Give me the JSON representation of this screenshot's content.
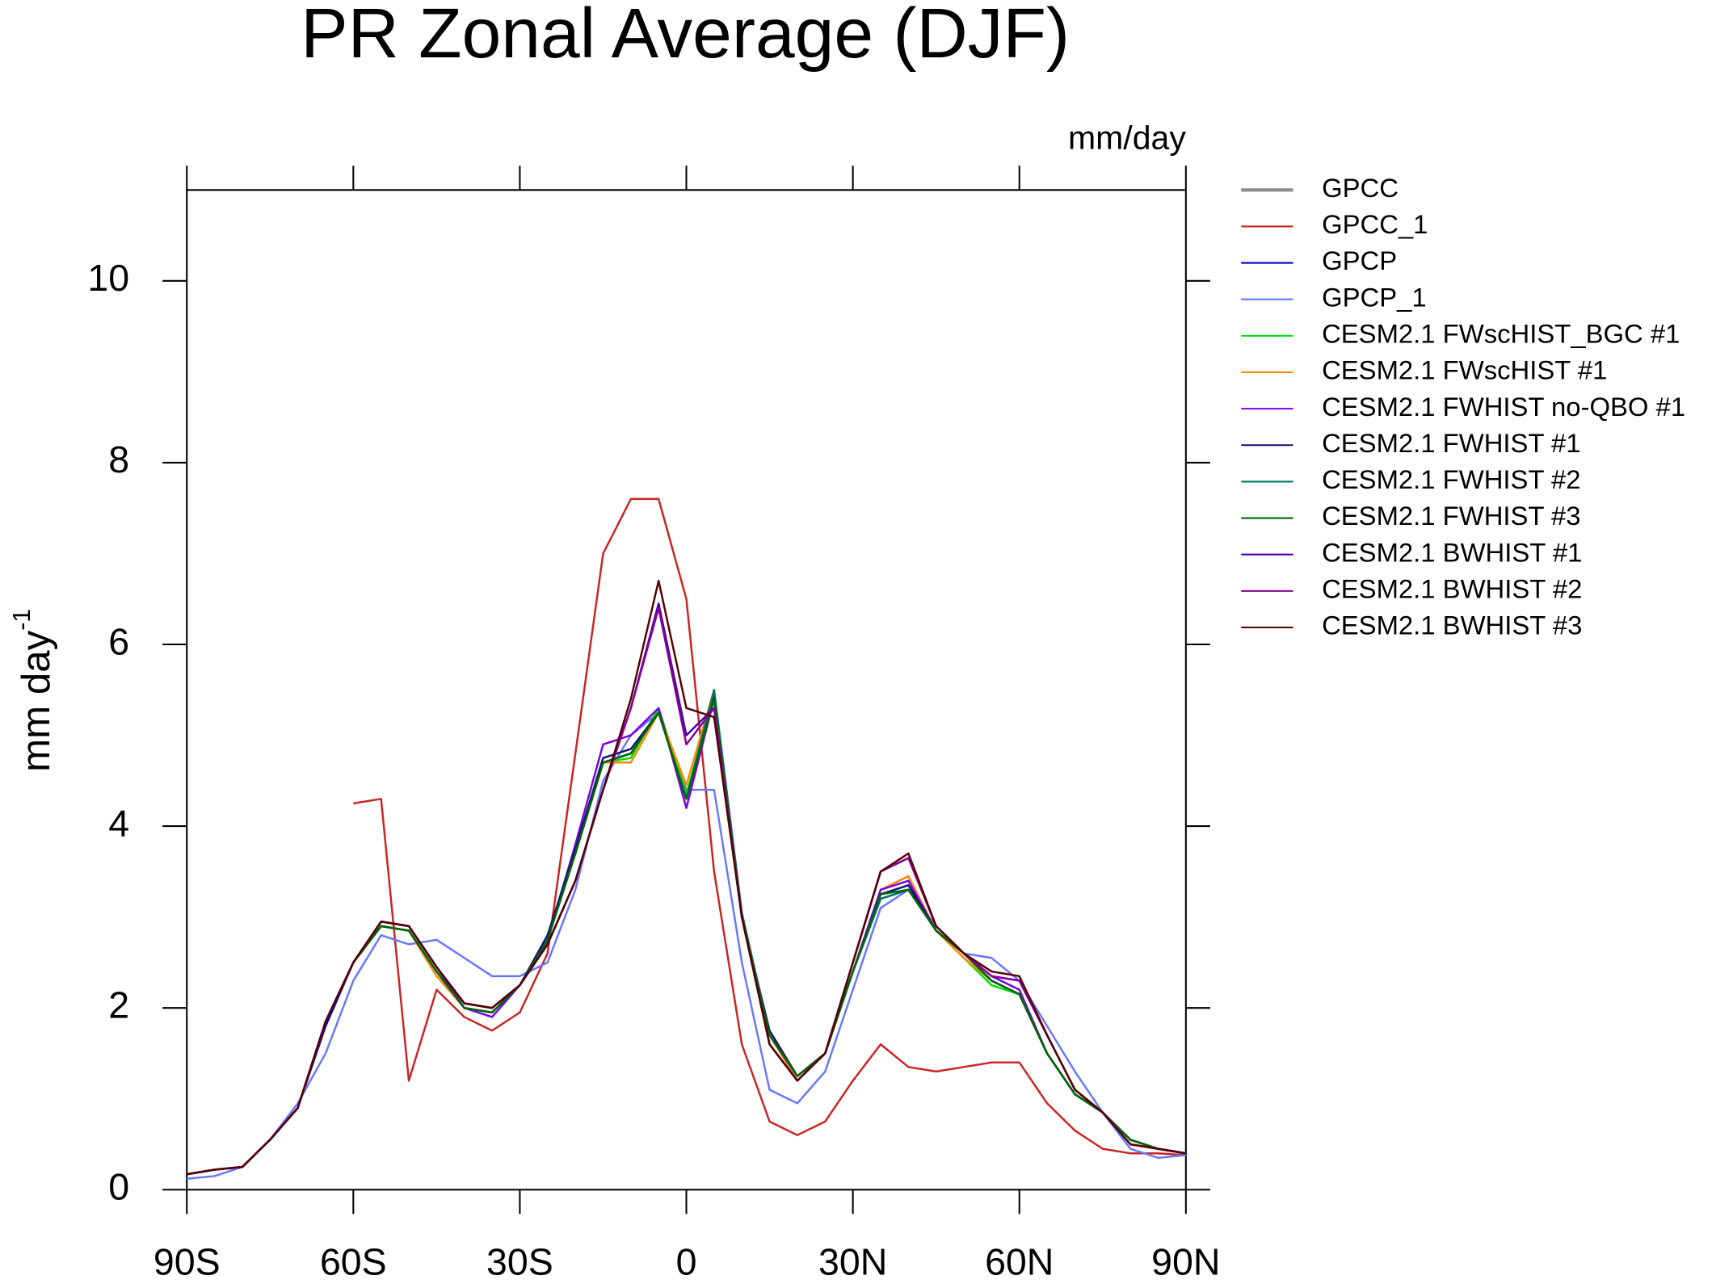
{
  "chart_data": {
    "type": "line",
    "title": "PR Zonal Average (DJF)",
    "units": "mm/day",
    "y_label": "mm day",
    "y_label_sup": "-1",
    "x": [
      -90,
      -85,
      -80,
      -75,
      -70,
      -65,
      -60,
      -55,
      -50,
      -45,
      -40,
      -35,
      -30,
      -25,
      -20,
      -15,
      -10,
      -5,
      0,
      5,
      10,
      15,
      20,
      25,
      30,
      35,
      40,
      45,
      50,
      55,
      60,
      65,
      70,
      75,
      80,
      85,
      90
    ],
    "xlim": [
      -90,
      90
    ],
    "xticks": [
      {
        "value": -90,
        "label": "90S"
      },
      {
        "value": -60,
        "label": "60S"
      },
      {
        "value": -30,
        "label": "30S"
      },
      0,
      {
        "value": 30,
        "label": "30N"
      },
      {
        "value": 60,
        "label": "60N"
      },
      {
        "value": 90,
        "label": "90N"
      }
    ],
    "ylim": [
      0,
      11
    ],
    "yticks": [
      0,
      2,
      4,
      6,
      8,
      10
    ],
    "series": [
      {
        "name": "GPCC",
        "color": "#8c8c8c",
        "values": [
          null,
          null,
          null,
          null,
          null,
          null,
          null,
          null,
          null,
          null,
          null,
          null,
          null,
          null,
          null,
          null,
          null,
          null,
          null,
          null,
          null,
          null,
          null,
          null,
          null,
          null,
          null,
          null,
          null,
          null,
          null,
          null,
          null,
          null,
          null,
          null,
          null
        ]
      },
      {
        "name": "GPCC_1",
        "color": "#cc2222",
        "values": [
          null,
          null,
          null,
          null,
          null,
          null,
          4.25,
          4.3,
          1.2,
          2.2,
          1.9,
          1.75,
          1.95,
          2.6,
          4.8,
          7.0,
          7.6,
          7.6,
          6.5,
          3.5,
          1.6,
          0.75,
          0.6,
          0.75,
          1.2,
          1.6,
          1.35,
          1.3,
          1.35,
          1.4,
          1.4,
          0.95,
          0.65,
          0.45,
          0.4,
          0.4,
          0.38
        ]
      },
      {
        "name": "GPCP",
        "color": "#0000cc",
        "values": [
          0.17,
          0.22,
          0.25,
          0.55,
          0.9,
          1.8,
          2.5,
          2.9,
          2.85,
          2.4,
          2.0,
          1.95,
          2.25,
          2.75,
          3.7,
          4.7,
          4.8,
          5.25,
          4.3,
          5.45,
          3.0,
          1.7,
          1.25,
          1.5,
          2.4,
          3.2,
          3.3,
          2.85,
          2.6,
          2.3,
          2.15,
          1.5,
          1.05,
          0.85,
          0.55,
          0.45,
          0.4
        ]
      },
      {
        "name": "GPCP_1",
        "color": "#6677ff",
        "values": [
          0.12,
          0.15,
          0.25,
          0.55,
          0.95,
          1.5,
          2.3,
          2.8,
          2.7,
          2.75,
          2.55,
          2.35,
          2.35,
          2.5,
          3.3,
          4.5,
          5.0,
          5.25,
          4.4,
          4.4,
          2.5,
          1.1,
          0.95,
          1.3,
          2.2,
          3.1,
          3.3,
          2.9,
          2.6,
          2.55,
          2.3,
          1.8,
          1.3,
          0.85,
          0.45,
          0.35,
          0.38
        ]
      },
      {
        "name": "CESM2.1 FWscHIST_BGC #1",
        "color": "#00dd00",
        "values": [
          0.17,
          0.22,
          0.25,
          0.55,
          0.9,
          1.85,
          2.5,
          2.9,
          2.85,
          2.4,
          2.0,
          1.95,
          2.25,
          2.75,
          3.7,
          4.7,
          4.75,
          5.3,
          4.35,
          5.45,
          3.0,
          1.7,
          1.25,
          1.5,
          2.4,
          3.25,
          3.35,
          2.85,
          2.55,
          2.25,
          2.15,
          1.5,
          1.05,
          0.85,
          0.55,
          0.45,
          0.4
        ]
      },
      {
        "name": "CESM2.1 FWscHIST #1",
        "color": "#ff8800",
        "values": [
          0.17,
          0.22,
          0.25,
          0.55,
          0.9,
          1.85,
          2.5,
          2.9,
          2.85,
          2.35,
          2.0,
          1.95,
          2.25,
          2.75,
          3.7,
          4.7,
          4.7,
          5.25,
          4.45,
          5.5,
          3.0,
          1.7,
          1.2,
          1.5,
          2.4,
          3.3,
          3.45,
          2.85,
          2.55,
          2.3,
          2.15,
          1.5,
          1.05,
          0.85,
          0.55,
          0.45,
          0.4
        ]
      },
      {
        "name": "CESM2.1 FWHIST no-QBO #1",
        "color": "#7700ee",
        "values": [
          0.17,
          0.22,
          0.25,
          0.55,
          0.9,
          1.85,
          2.5,
          2.95,
          2.9,
          2.45,
          2.0,
          1.9,
          2.25,
          2.75,
          3.8,
          4.9,
          5.0,
          5.3,
          4.2,
          5.4,
          3.0,
          1.7,
          1.25,
          1.5,
          2.4,
          3.3,
          3.4,
          2.85,
          2.6,
          2.35,
          2.2,
          1.5,
          1.05,
          0.85,
          0.55,
          0.45,
          0.4
        ]
      },
      {
        "name": "CESM2.1 FWHIST #1",
        "color": "#111177",
        "values": [
          0.17,
          0.22,
          0.25,
          0.55,
          0.9,
          1.85,
          2.5,
          2.9,
          2.85,
          2.4,
          2.0,
          1.95,
          2.25,
          2.8,
          3.75,
          4.75,
          4.85,
          5.25,
          4.3,
          5.45,
          3.0,
          1.75,
          1.25,
          1.5,
          2.4,
          3.25,
          3.35,
          2.85,
          2.6,
          2.3,
          2.15,
          1.5,
          1.05,
          0.85,
          0.55,
          0.45,
          0.4
        ]
      },
      {
        "name": "CESM2.1 FWHIST #2",
        "color": "#007766",
        "values": [
          0.17,
          0.22,
          0.25,
          0.55,
          0.9,
          1.85,
          2.5,
          2.9,
          2.85,
          2.4,
          2.0,
          1.95,
          2.25,
          2.75,
          3.7,
          4.7,
          4.8,
          5.25,
          4.3,
          5.5,
          3.05,
          1.7,
          1.25,
          1.5,
          2.4,
          3.2,
          3.3,
          2.85,
          2.6,
          2.3,
          2.15,
          1.5,
          1.05,
          0.85,
          0.55,
          0.45,
          0.4
        ]
      },
      {
        "name": "CESM2.1 FWHIST #3",
        "color": "#006600",
        "values": [
          0.17,
          0.22,
          0.25,
          0.55,
          0.9,
          1.85,
          2.5,
          2.9,
          2.85,
          2.4,
          2.0,
          1.95,
          2.25,
          2.75,
          3.7,
          4.7,
          4.8,
          5.25,
          4.3,
          5.4,
          3.0,
          1.7,
          1.25,
          1.5,
          2.4,
          3.25,
          3.3,
          2.85,
          2.6,
          2.3,
          2.15,
          1.5,
          1.05,
          0.85,
          0.55,
          0.45,
          0.4
        ]
      },
      {
        "name": "CESM2.1 BWHIST #1",
        "color": "#4400aa",
        "values": [
          0.17,
          0.22,
          0.25,
          0.55,
          0.9,
          1.85,
          2.5,
          2.95,
          2.9,
          2.45,
          2.05,
          2.0,
          2.25,
          2.7,
          3.4,
          4.4,
          5.3,
          6.45,
          5.0,
          5.3,
          3.0,
          1.6,
          1.2,
          1.5,
          2.5,
          3.5,
          3.65,
          2.9,
          2.6,
          2.35,
          2.3,
          1.7,
          1.1,
          0.85,
          0.5,
          0.45,
          0.4
        ]
      },
      {
        "name": "CESM2.1 BWHIST #2",
        "color": "#880099",
        "values": [
          0.17,
          0.22,
          0.25,
          0.55,
          0.9,
          1.85,
          2.5,
          2.95,
          2.9,
          2.45,
          2.05,
          2.0,
          2.25,
          2.7,
          3.4,
          4.4,
          5.3,
          6.4,
          4.9,
          5.3,
          3.0,
          1.6,
          1.2,
          1.5,
          2.5,
          3.5,
          3.65,
          2.9,
          2.6,
          2.35,
          2.3,
          1.7,
          1.1,
          0.85,
          0.5,
          0.45,
          0.4
        ]
      },
      {
        "name": "CESM2.1 BWHIST #3",
        "color": "#550000",
        "values": [
          0.17,
          0.22,
          0.25,
          0.55,
          0.9,
          1.85,
          2.5,
          2.95,
          2.9,
          2.45,
          2.05,
          2.0,
          2.25,
          2.7,
          3.4,
          4.4,
          5.4,
          6.7,
          5.3,
          5.2,
          3.0,
          1.6,
          1.2,
          1.5,
          2.5,
          3.5,
          3.7,
          2.9,
          2.6,
          2.4,
          2.35,
          1.7,
          1.1,
          0.85,
          0.5,
          0.45,
          0.4
        ]
      }
    ]
  }
}
